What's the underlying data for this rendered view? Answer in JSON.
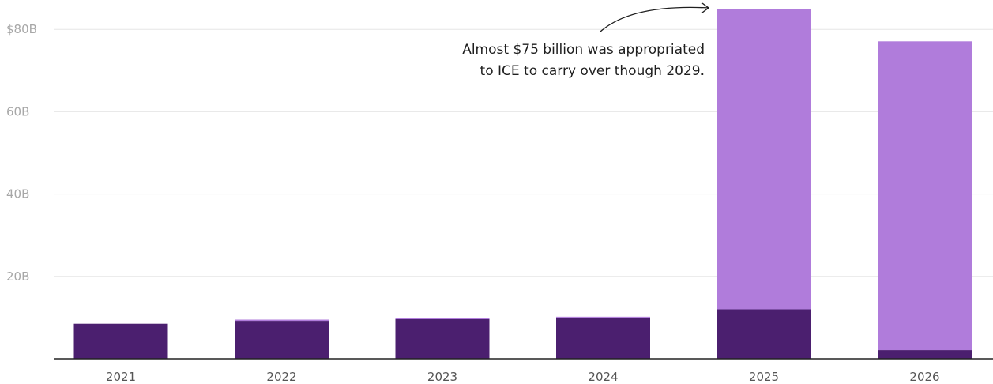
{
  "chart_data": {
    "type": "bar",
    "stacked": true,
    "categories": [
      "2021",
      "2022",
      "2023",
      "2024",
      "2025",
      "2026"
    ],
    "series": [
      {
        "values": [
          8.5,
          9.2,
          9.6,
          10.0,
          12.0,
          2.1
        ],
        "color": "#4b1f6f"
      },
      {
        "values": [
          0,
          0.3,
          0.2,
          0.2,
          73.0,
          75.0
        ],
        "color": "#b07cdb"
      }
    ],
    "yticks": [
      20,
      40,
      60,
      80
    ],
    "ytick_labels": [
      "20B",
      "40B",
      "60B",
      "$80B"
    ],
    "ylim": [
      0,
      86
    ],
    "grid": true,
    "annotation": {
      "line1": "Almost $75 billion was appropriated",
      "line2": "to ICE to carry over though 2029.",
      "target_category": "2025"
    }
  }
}
